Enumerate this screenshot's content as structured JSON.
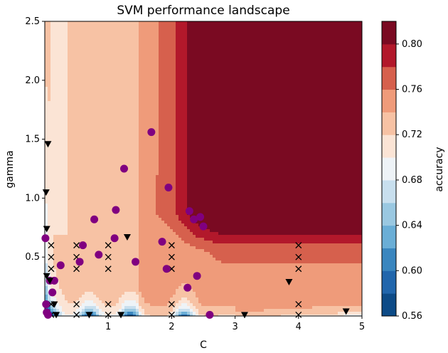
{
  "chart_data": {
    "type": "contour",
    "title": "SVM performance landscape",
    "xlabel": "C",
    "ylabel": "gamma",
    "colorbar_label": "accuracy",
    "xlim": [
      0,
      5
    ],
    "ylim": [
      0,
      2.5
    ],
    "x_ticks": [
      1,
      2,
      3,
      4,
      5
    ],
    "y_ticks": [
      0.5,
      1.0,
      1.5,
      2.0,
      2.5
    ],
    "colorbar_ticks": [
      0.56,
      0.6,
      0.64,
      0.68,
      0.72,
      0.76,
      0.8
    ],
    "colorbar_range": [
      0.56,
      0.82
    ],
    "colormap": "RdBu_r",
    "grid": false,
    "contour_levels": [
      {
        "min": 0.56,
        "max": 0.58,
        "color": "#0d4b87"
      },
      {
        "min": 0.58,
        "max": 0.6,
        "color": "#2166ac"
      },
      {
        "min": 0.6,
        "max": 0.62,
        "color": "#3a86bf"
      },
      {
        "min": 0.62,
        "max": 0.64,
        "color": "#6aaed6"
      },
      {
        "min": 0.64,
        "max": 0.66,
        "color": "#9ac8e1"
      },
      {
        "min": 0.66,
        "max": 0.68,
        "color": "#c8dfee"
      },
      {
        "min": 0.68,
        "max": 0.7,
        "color": "#eef3f7"
      },
      {
        "min": 0.7,
        "max": 0.72,
        "color": "#fbe4d5"
      },
      {
        "min": 0.72,
        "max": 0.74,
        "color": "#f7c2a4"
      },
      {
        "min": 0.74,
        "max": 0.76,
        "color": "#ef9b7a"
      },
      {
        "min": 0.76,
        "max": 0.78,
        "color": "#d6604d"
      },
      {
        "min": 0.78,
        "max": 0.8,
        "color": "#b2182b"
      },
      {
        "min": 0.8,
        "max": 0.82,
        "color": "#7a0a22"
      }
    ],
    "series": [
      {
        "marker": "x",
        "points": [
          [
            0.1,
            0.6
          ],
          [
            0.1,
            0.5
          ],
          [
            0.1,
            0.4
          ],
          [
            0.1,
            0.3
          ],
          [
            0.1,
            0.1
          ],
          [
            0.1,
            0.01
          ],
          [
            0.5,
            0.6
          ],
          [
            0.5,
            0.5
          ],
          [
            0.5,
            0.4
          ],
          [
            0.5,
            0.1
          ],
          [
            0.5,
            0.01
          ],
          [
            1,
            0.6
          ],
          [
            1,
            0.5
          ],
          [
            1,
            0.4
          ],
          [
            1,
            0.1
          ],
          [
            1,
            0.01
          ],
          [
            2,
            0.6
          ],
          [
            2,
            0.5
          ],
          [
            2,
            0.4
          ],
          [
            2,
            0.1
          ],
          [
            2,
            0.01
          ],
          [
            4,
            0.6
          ],
          [
            4,
            0.5
          ],
          [
            4,
            0.4
          ],
          [
            4,
            0.1
          ],
          [
            4,
            0.01
          ]
        ]
      },
      {
        "marker": "circle",
        "points": [
          [
            0.01,
            0.66
          ],
          [
            0.02,
            0.1
          ],
          [
            0.03,
            0.03
          ],
          [
            0.05,
            0.01
          ],
          [
            0.08,
            0.3
          ],
          [
            0.12,
            0.2
          ],
          [
            0.15,
            0.3
          ],
          [
            0.25,
            0.43
          ],
          [
            0.55,
            0.46
          ],
          [
            0.6,
            0.6
          ],
          [
            0.78,
            0.82
          ],
          [
            0.85,
            0.52
          ],
          [
            1.12,
            0.9
          ],
          [
            1.1,
            0.66
          ],
          [
            1.25,
            1.25
          ],
          [
            1.43,
            0.46
          ],
          [
            1.68,
            1.56
          ],
          [
            1.85,
            0.63
          ],
          [
            1.92,
            0.4
          ],
          [
            1.95,
            1.09
          ],
          [
            2.25,
            0.24
          ],
          [
            2.28,
            0.89
          ],
          [
            2.35,
            0.82
          ],
          [
            2.4,
            0.34
          ],
          [
            2.45,
            0.84
          ],
          [
            2.5,
            0.76
          ],
          [
            2.6,
            0.01
          ]
        ]
      },
      {
        "marker": "triangle-down",
        "points": [
          [
            0.05,
            1.46
          ],
          [
            0.02,
            1.05
          ],
          [
            0.03,
            0.74
          ],
          [
            0.03,
            0.34
          ],
          [
            0.08,
            0.3
          ],
          [
            0.15,
            0.1
          ],
          [
            0.18,
            0.01
          ],
          [
            0.7,
            0.01
          ],
          [
            1.2,
            0.01
          ],
          [
            1.3,
            0.67
          ],
          [
            3.15,
            0.01
          ],
          [
            3.85,
            0.29
          ],
          [
            4.75,
            0.04
          ]
        ]
      }
    ]
  }
}
